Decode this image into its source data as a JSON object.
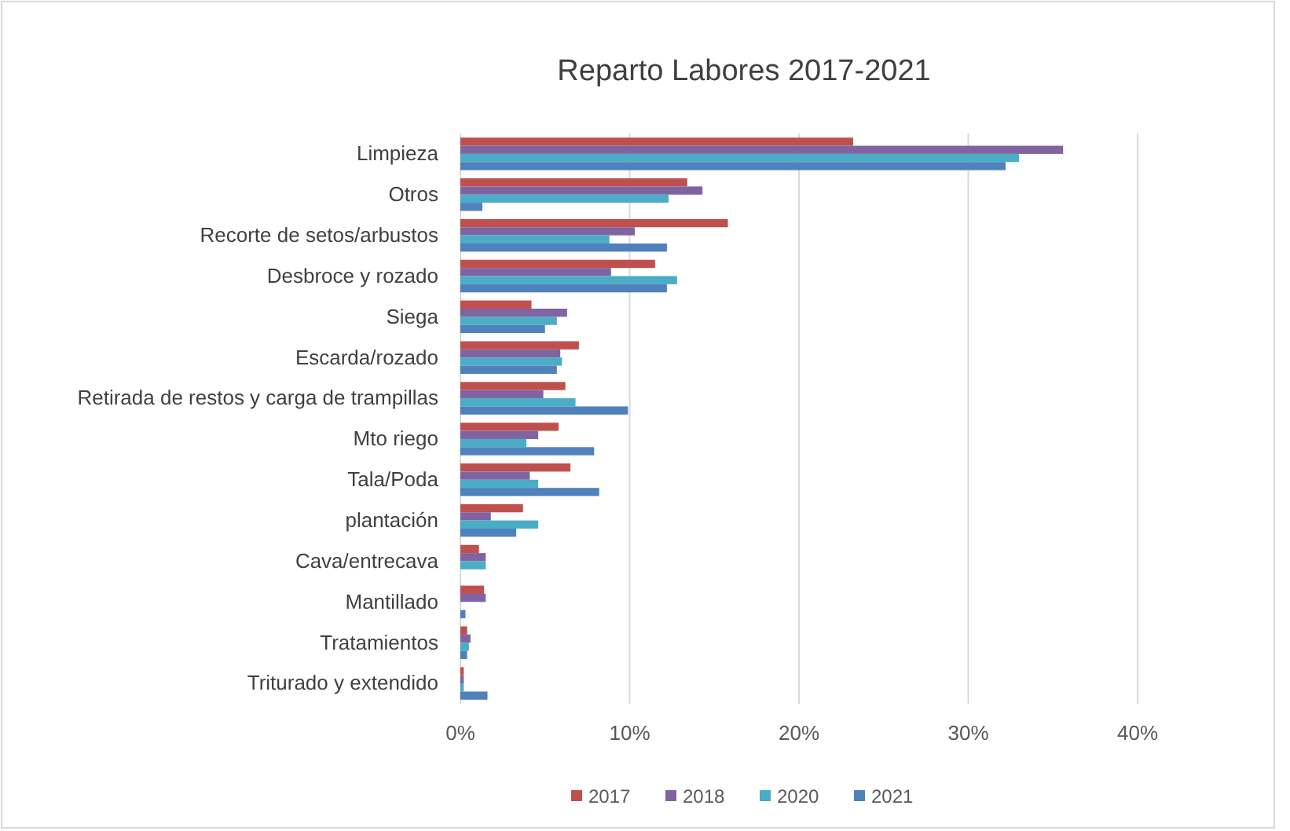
{
  "chart_data": {
    "type": "bar",
    "orientation": "horizontal",
    "title": "Reparto Labores 2017-2021",
    "categories": [
      "Limpieza",
      "Otros",
      "Recorte de setos/arbustos",
      "Desbroce y rozado",
      "Siega",
      "Escarda/rozado",
      "Retirada de restos y carga de trampillas",
      "Mto riego",
      "Tala/Poda",
      "plantación",
      "Cava/entrecava",
      "Mantillado",
      "Tratamientos",
      "Triturado y extendido"
    ],
    "series": [
      {
        "name": "2017",
        "color": "#c0504d",
        "values": [
          23.2,
          13.4,
          15.8,
          11.5,
          4.2,
          7.0,
          6.2,
          5.8,
          6.5,
          3.7,
          1.1,
          1.4,
          0.4,
          0.2
        ]
      },
      {
        "name": "2018",
        "color": "#8064a2",
        "values": [
          35.6,
          14.3,
          10.3,
          8.9,
          6.3,
          5.9,
          4.9,
          4.6,
          4.1,
          1.8,
          1.5,
          1.5,
          0.6,
          0.2
        ]
      },
      {
        "name": "2020",
        "color": "#4bacc6",
        "values": [
          33.0,
          12.3,
          8.8,
          12.8,
          5.7,
          6.0,
          6.8,
          3.9,
          4.6,
          4.6,
          1.5,
          0,
          0.5,
          0.2
        ]
      },
      {
        "name": "2021",
        "color": "#4f81bd",
        "values": [
          32.2,
          1.3,
          12.2,
          12.2,
          5.0,
          5.7,
          9.9,
          7.9,
          8.2,
          3.3,
          0,
          0.3,
          0.4,
          1.6
        ]
      }
    ],
    "xlim": [
      0,
      40
    ],
    "xticks": [
      {
        "value": 0,
        "label": "0%"
      },
      {
        "value": 10,
        "label": "10%"
      },
      {
        "value": 20,
        "label": "20%"
      },
      {
        "value": 30,
        "label": "30%"
      },
      {
        "value": 40,
        "label": "40%"
      }
    ],
    "grid": "x",
    "legend": "bottom"
  }
}
